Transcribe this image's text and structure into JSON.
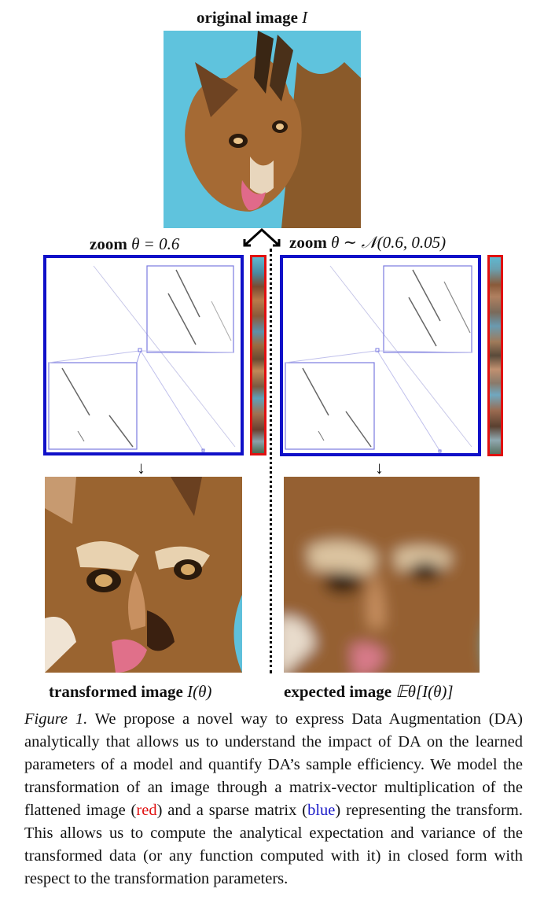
{
  "top": {
    "label_bold": "original image",
    "label_var": "I"
  },
  "left": {
    "label_bold": "zoom",
    "label_math": "θ = 0.6",
    "bottom_bold": "transformed image",
    "bottom_math": "I(θ)"
  },
  "right": {
    "label_bold": "zoom",
    "label_math": "θ ∼ 𝒩(0.6, 0.05)",
    "bottom_bold": "expected image",
    "bottom_math": "𝔼θ[I(θ)]"
  },
  "caption": {
    "figure_label": "Figure 1.",
    "text_1": "We propose a novel way to express Data Augmentation (DA) analytically that allows us to understand the impact of DA on the learned parameters of a model and quantify DA’s sample efficiency. We model the transformation of an image through a matrix-vector multiplication of the flattened image (",
    "red_word": "red",
    "text_2": ") and a sparse matrix (",
    "blue_word": "blue",
    "text_3": ") representing the transform. This allows us to compute the analytical expectation and variance of the transformed data (or any function computed with it) in closed form with respect to the transformation parameters."
  },
  "colors": {
    "matrix_border": "#1010c8",
    "vector_border": "#e01010",
    "background_sky": "#5cc0dc",
    "fur": "#9a6530"
  }
}
